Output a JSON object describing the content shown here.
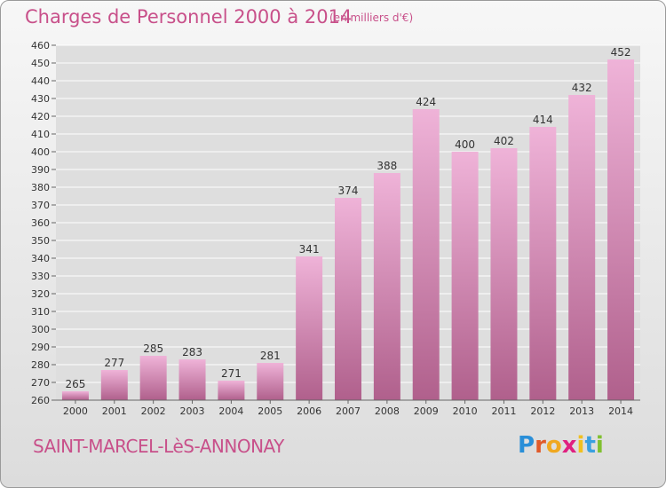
{
  "title": "Charges de Personnel 2000 à 2014",
  "subtitle": "(en milliers d'€)",
  "commune": "SAINT-MARCEL-LèS-ANNONAY",
  "logo": {
    "text": "Proxiti",
    "letter_colors": [
      "#2a8fd8",
      "#e05a2a",
      "#f0a820",
      "#e02080",
      "#f0c020",
      "#3aa0e0",
      "#80c030"
    ]
  },
  "colors": {
    "accent": "#c8508a",
    "bar_light": "#efb3d8",
    "bar_dark": "#b0608c",
    "grid": "#ffffff"
  },
  "chart_data": {
    "type": "bar",
    "categories": [
      "2000",
      "2001",
      "2002",
      "2003",
      "2004",
      "2005",
      "2006",
      "2007",
      "2008",
      "2009",
      "2010",
      "2011",
      "2012",
      "2013",
      "2014"
    ],
    "values": [
      265,
      277,
      285,
      283,
      271,
      281,
      341,
      374,
      388,
      424,
      400,
      402,
      414,
      432,
      452
    ],
    "ylim": [
      260,
      460
    ],
    "yticks": [
      260,
      270,
      280,
      290,
      300,
      310,
      320,
      330,
      340,
      350,
      360,
      370,
      380,
      390,
      400,
      410,
      420,
      430,
      440,
      450,
      460
    ],
    "grid": true,
    "xlabel": "",
    "ylabel": ""
  }
}
